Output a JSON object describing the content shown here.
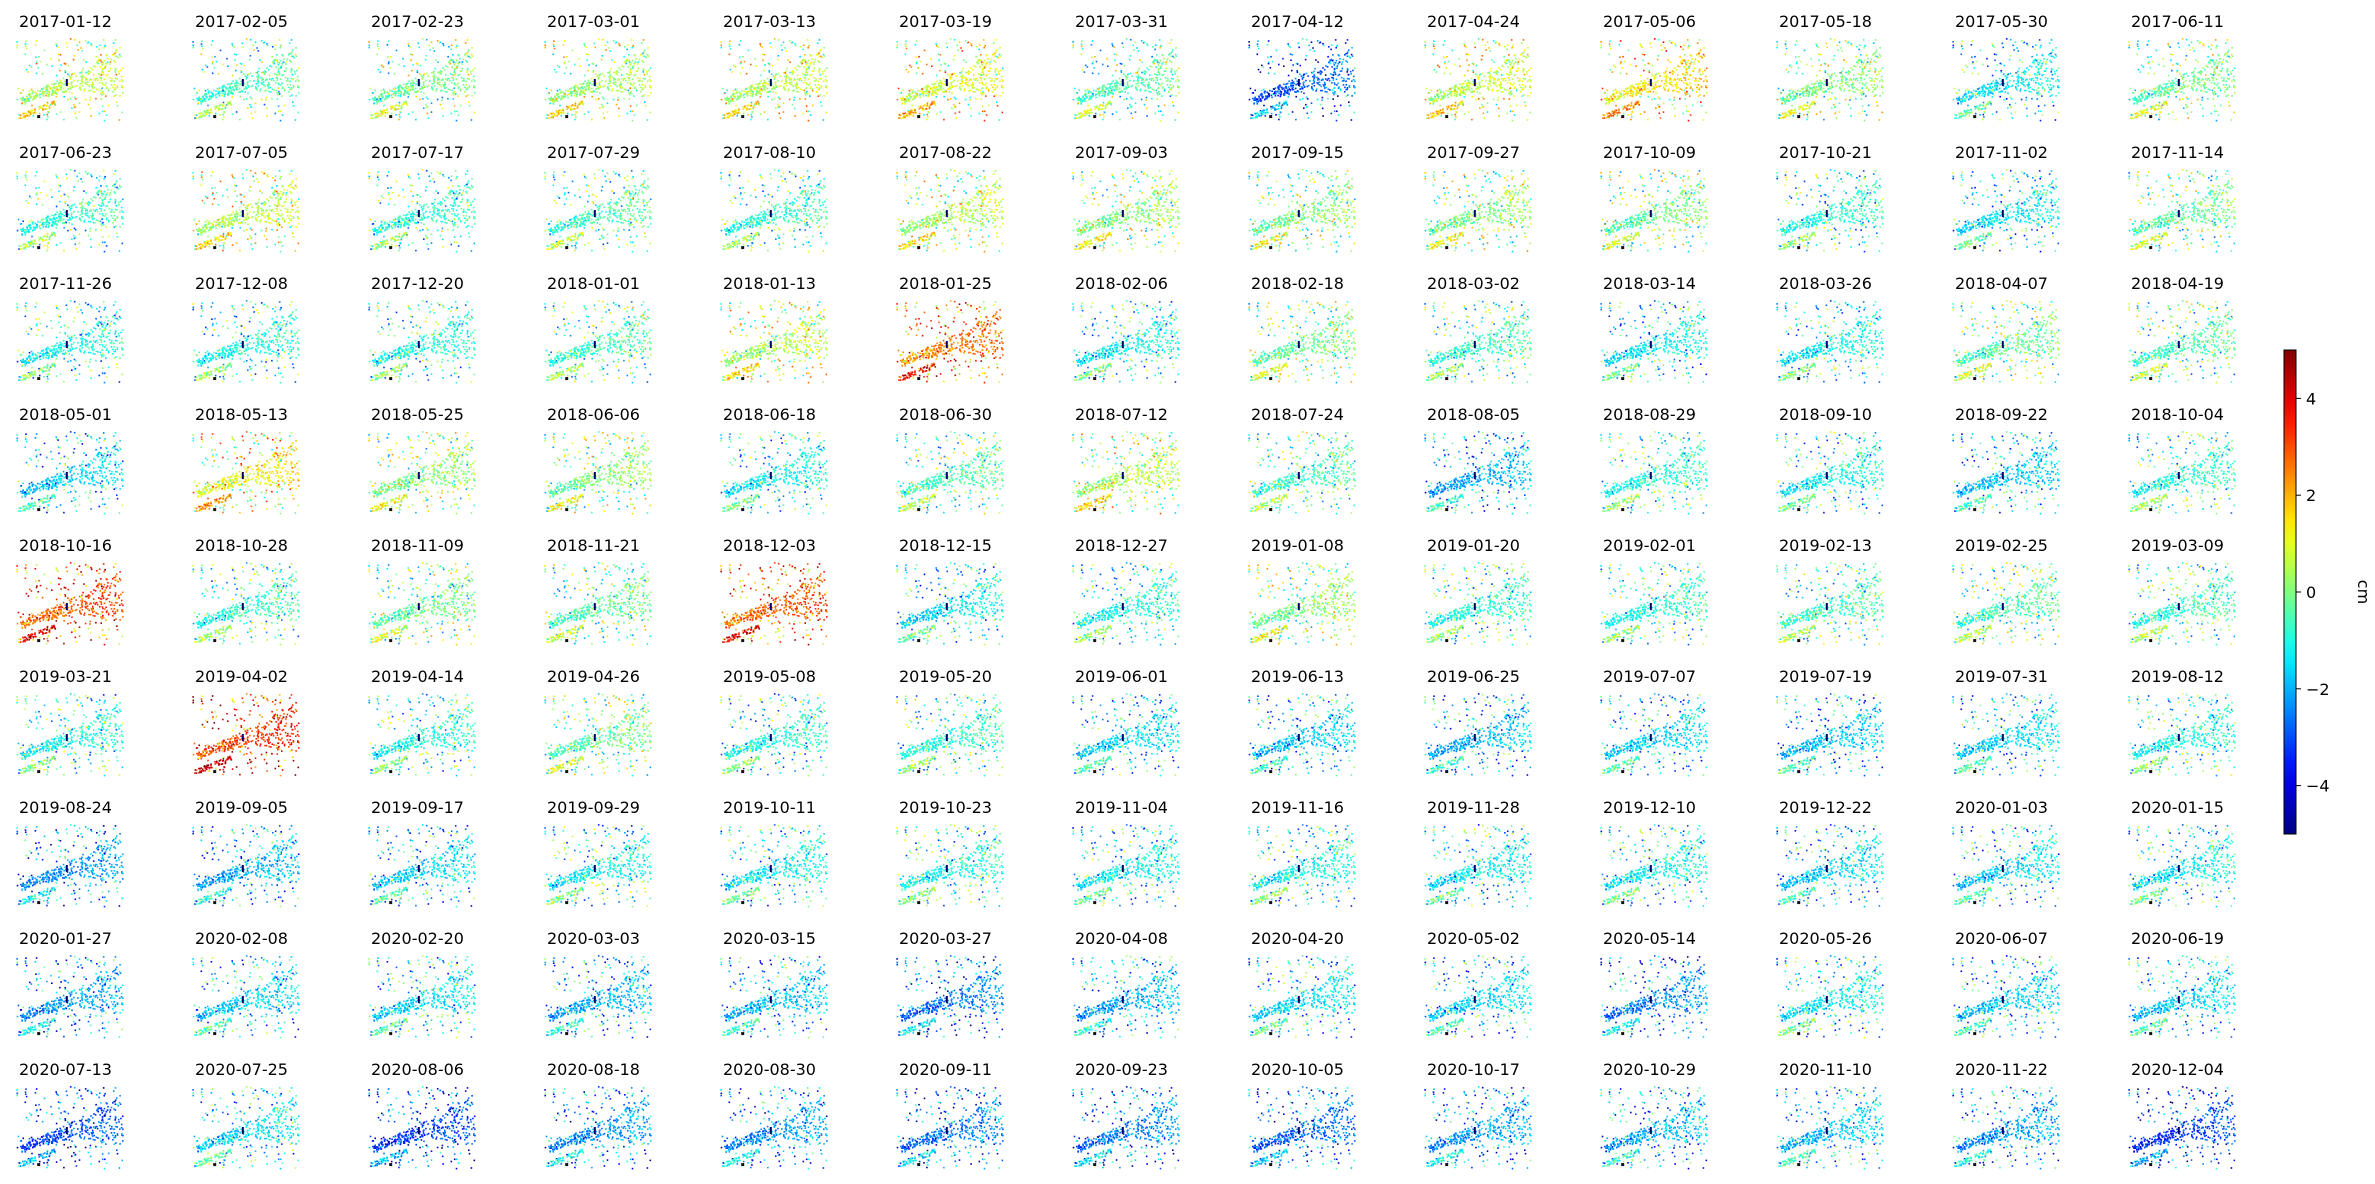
{
  "chart_data": {
    "type": "scatter",
    "description_kind": "grid of displacement scatter maps",
    "grid": false,
    "rows": 9,
    "cols": 13,
    "dates": [
      "2017-01-12",
      "2017-02-05",
      "2017-02-23",
      "2017-03-01",
      "2017-03-13",
      "2017-03-19",
      "2017-03-31",
      "2017-04-12",
      "2017-04-24",
      "2017-05-06",
      "2017-05-18",
      "2017-05-30",
      "2017-06-11",
      "2017-06-23",
      "2017-07-05",
      "2017-07-17",
      "2017-07-29",
      "2017-08-10",
      "2017-08-22",
      "2017-09-03",
      "2017-09-15",
      "2017-09-27",
      "2017-10-09",
      "2017-10-21",
      "2017-11-02",
      "2017-11-14",
      "2017-11-26",
      "2017-12-08",
      "2017-12-20",
      "2018-01-01",
      "2018-01-13",
      "2018-01-25",
      "2018-02-06",
      "2018-02-18",
      "2018-03-02",
      "2018-03-14",
      "2018-03-26",
      "2018-04-07",
      "2018-04-19",
      "2018-05-01",
      "2018-05-13",
      "2018-05-25",
      "2018-06-06",
      "2018-06-18",
      "2018-06-30",
      "2018-07-12",
      "2018-07-24",
      "2018-08-05",
      "2018-08-29",
      "2018-09-10",
      "2018-09-22",
      "2018-10-04",
      "2018-10-16",
      "2018-10-28",
      "2018-11-09",
      "2018-11-21",
      "2018-12-03",
      "2018-12-15",
      "2018-12-27",
      "2019-01-08",
      "2019-01-20",
      "2019-02-01",
      "2019-02-13",
      "2019-02-25",
      "2019-03-09",
      "2019-03-21",
      "2019-04-02",
      "2019-04-14",
      "2019-04-26",
      "2019-05-08",
      "2019-05-20",
      "2019-06-01",
      "2019-06-13",
      "2019-06-25",
      "2019-07-07",
      "2019-07-19",
      "2019-07-31",
      "2019-08-12",
      "2019-08-24",
      "2019-09-05",
      "2019-09-17",
      "2019-09-29",
      "2019-10-11",
      "2019-10-23",
      "2019-11-04",
      "2019-11-16",
      "2019-11-28",
      "2019-12-10",
      "2019-12-22",
      "2020-01-03",
      "2020-01-15",
      "2020-01-27",
      "2020-02-08",
      "2020-02-20",
      "2020-03-03",
      "2020-03-15",
      "2020-03-27",
      "2020-04-08",
      "2020-04-20",
      "2020-05-02",
      "2020-05-14",
      "2020-05-26",
      "2020-06-07",
      "2020-06-19",
      "2020-07-13",
      "2020-07-25",
      "2020-08-06",
      "2020-08-18",
      "2020-08-30",
      "2020-09-11",
      "2020-09-23",
      "2020-10-05",
      "2020-10-17",
      "2020-10-29",
      "2020-11-10",
      "2020-11-22",
      "2020-12-04"
    ],
    "mean_displacement_cm": [
      0.5,
      -0.6,
      -0.2,
      0.3,
      0.5,
      0.9,
      -0.4,
      -2.8,
      0.6,
      1.4,
      0.0,
      -1.4,
      -0.2,
      -0.8,
      0.5,
      -0.8,
      -0.6,
      -0.8,
      0.4,
      0.1,
      0.0,
      0.1,
      -0.2,
      -0.9,
      -1.4,
      -0.3,
      -1.1,
      -1.0,
      -1.0,
      -0.6,
      0.5,
      2.5,
      -1.2,
      -0.2,
      -0.7,
      -1.3,
      -1.2,
      -0.3,
      -0.5,
      -1.6,
      1.2,
      0.0,
      0.0,
      -1.2,
      -0.5,
      0.5,
      -0.6,
      -2.0,
      -0.9,
      -1.2,
      -1.8,
      -0.9,
      2.9,
      -0.8,
      -0.2,
      -0.4,
      2.8,
      -1.4,
      -1.0,
      0.1,
      -0.9,
      -0.9,
      -0.6,
      -0.6,
      -0.7,
      -1.1,
      3.2,
      -1.0,
      -0.3,
      -1.0,
      -0.8,
      -1.6,
      -1.7,
      -1.9,
      -1.6,
      -1.8,
      -1.6,
      -1.0,
      -2.3,
      -2.0,
      -1.6,
      -1.2,
      -1.3,
      -1.1,
      -1.3,
      -1.1,
      -1.3,
      -1.2,
      -1.6,
      -1.6,
      -1.3,
      -2.2,
      -1.6,
      -1.5,
      -2.0,
      -1.8,
      -2.6,
      -2.0,
      -1.5,
      -1.6,
      -2.4,
      -1.3,
      -1.7,
      -1.6,
      -3.0,
      -1.5,
      -3.2,
      -2.3,
      -2.3,
      -2.6,
      -2.5,
      -2.8,
      -2.2,
      -2.0,
      -1.9,
      -2.2,
      -3.2
    ],
    "colorbar": {
      "label": "cm",
      "vmin": -5,
      "vmax": 5,
      "colormap": "jet",
      "ticks": [
        4,
        2,
        0,
        -2,
        -4
      ],
      "tick_labels": [
        "4",
        "2",
        "0",
        "−2",
        "−4"
      ]
    }
  }
}
